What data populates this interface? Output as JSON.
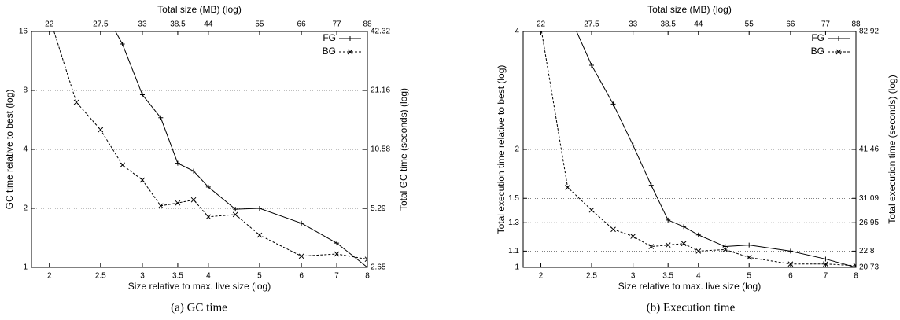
{
  "chart_data": [
    {
      "type": "line",
      "caption": "(a) GC time",
      "xlabel": "Size relative to max. live size (log)",
      "x2label": "Total size (MB) (log)",
      "ylabel": "GC time relative to best (log)",
      "y2label": "Total GC time (seconds) (log)",
      "log_x": true,
      "log_y": true,
      "grid": "y",
      "legend": "top-right",
      "xlim": [
        1.85,
        8
      ],
      "xticks": [
        2,
        2.5,
        3,
        3.5,
        4,
        5,
        6,
        7,
        8
      ],
      "x2lim": [
        20.35,
        88
      ],
      "x2ticks": [
        22,
        27.5,
        33,
        38.5,
        44,
        55,
        66,
        77,
        88
      ],
      "ylim": [
        1,
        16
      ],
      "yticks": [
        1,
        2,
        4,
        8,
        16
      ],
      "y2lim": [
        2.65,
        42.32
      ],
      "y2ticks": [
        2.65,
        5.29,
        10.58,
        21.16,
        42.32
      ],
      "x": [
        2,
        2.25,
        2.5,
        2.75,
        3,
        3.25,
        3.5,
        3.75,
        4,
        4.5,
        5,
        6,
        7,
        8
      ],
      "series": [
        {
          "name": "FG",
          "color": "#000000",
          "line_style": "solid",
          "marker": "plus",
          "values": [
            null,
            null,
            22,
            13.8,
            7.6,
            5.8,
            3.4,
            3.1,
            2.57,
            1.98,
            2.0,
            1.68,
            1.33,
            1
          ]
        },
        {
          "name": "BG",
          "color": "#000000",
          "line_style": "dashed",
          "marker": "cross",
          "values": [
            19,
            6.96,
            5.04,
            3.33,
            2.79,
            2.06,
            2.13,
            2.21,
            1.81,
            1.86,
            1.46,
            1.14,
            1.17,
            1.1
          ]
        }
      ]
    },
    {
      "type": "line",
      "caption": "(b) Execution time",
      "xlabel": "Size relative to max. live size (log)",
      "x2label": "Total size (MB) (log)",
      "ylabel": "Total execution time relative to best (log)",
      "y2label": "Total execution time (seconds) (log)",
      "log_x": true,
      "log_y": true,
      "grid": "y",
      "legend": "top-right",
      "xlim": [
        1.85,
        8
      ],
      "xticks": [
        2,
        2.5,
        3,
        3.5,
        4,
        5,
        6,
        7,
        8
      ],
      "x2lim": [
        20.35,
        88
      ],
      "x2ticks": [
        22,
        27.5,
        33,
        38.5,
        44,
        55,
        66,
        77,
        88
      ],
      "ylim": [
        1,
        4
      ],
      "yticks": [
        1,
        1.1,
        1.3,
        1.5,
        2,
        4
      ],
      "y2lim": [
        20.73,
        82.92
      ],
      "y2ticks": [
        20.73,
        22.8,
        26.95,
        31.09,
        41.46,
        82.92
      ],
      "x": [
        2,
        2.25,
        2.5,
        2.75,
        3,
        3.25,
        3.5,
        3.75,
        4,
        4.5,
        5,
        6,
        7,
        8
      ],
      "series": [
        {
          "name": "FG",
          "color": "#000000",
          "line_style": "solid",
          "marker": "plus",
          "values": [
            null,
            4.5,
            3.28,
            2.61,
            2.05,
            1.62,
            1.32,
            1.27,
            1.21,
            1.13,
            1.14,
            1.1,
            1.05,
            1
          ]
        },
        {
          "name": "BG",
          "color": "#000000",
          "line_style": "dashed",
          "marker": "cross",
          "values": [
            4.1,
            1.6,
            1.4,
            1.25,
            1.2,
            1.13,
            1.14,
            1.15,
            1.1,
            1.11,
            1.06,
            1.02,
            1.02,
            1.01
          ]
        }
      ]
    }
  ]
}
